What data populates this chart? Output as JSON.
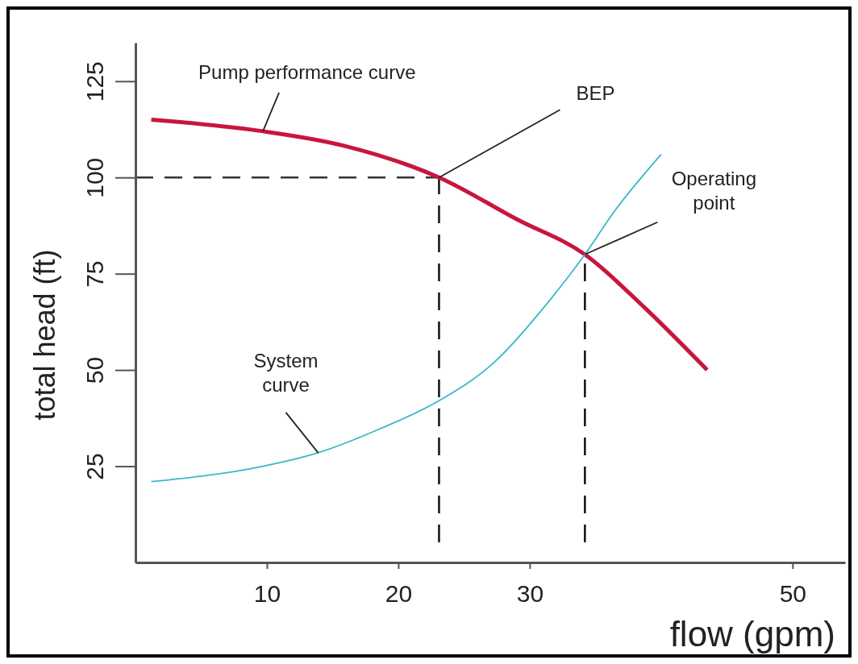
{
  "chart_data": {
    "type": "line",
    "xlabel": "flow (gpm)",
    "ylabel": "total head (ft)",
    "xlim": [
      0,
      54
    ],
    "xticks": [
      10,
      20,
      30,
      50
    ],
    "ylim": [
      0,
      135
    ],
    "yticks": [
      25,
      50,
      75,
      100,
      125
    ],
    "grid": false,
    "legend": false,
    "marker": "none",
    "line_style": "solid",
    "series": [
      {
        "color": "#c8163c",
        "x": [
          1.2,
          9.7,
          15.8,
          23.1,
          29.1,
          34.2,
          38.8,
          43.5
        ],
        "values": [
          115,
          112,
          108.3,
          100,
          89,
          80,
          66,
          50
        ]
      },
      {
        "color": "#3ab8c8",
        "x": [
          1.2,
          9.7,
          13.9,
          18.8,
          23.1,
          27.3,
          31.5,
          34.2,
          36.4,
          40
        ],
        "values": [
          21,
          25,
          28.5,
          35,
          42,
          52,
          68,
          80,
          91,
          106
        ]
      }
    ],
    "ref_lines": [
      {
        "axis": "y",
        "value": 100,
        "line_style": "dashed",
        "color": "#333333"
      },
      {
        "axis": "x",
        "value": 23.1,
        "line_style": "dashed",
        "color": "#111111"
      },
      {
        "axis": "x",
        "value": 34.2,
        "line_style": "dashed",
        "color": "#111111"
      }
    ],
    "annotations": [
      {
        "text": "Pump performance curve",
        "x": 9.7,
        "y": 112
      },
      {
        "text": "BEP",
        "x": 23.1,
        "y": 100
      },
      {
        "text": "Operating point",
        "x": 34.2,
        "y": 80
      },
      {
        "text": "System curve",
        "x": 13.9,
        "y": 28.5
      }
    ]
  }
}
